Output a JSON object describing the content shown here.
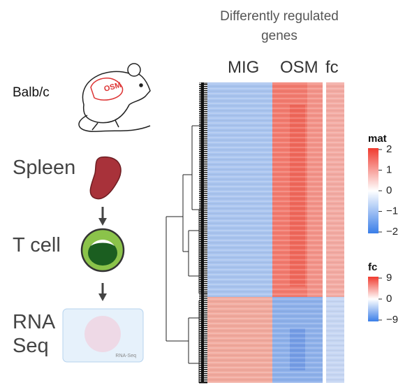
{
  "steps": [
    "Balb/c",
    "Spleen",
    "T cell",
    "RNA Seq"
  ],
  "mouse_tag": "OSM",
  "rna_icon_label": "RNA-Seq",
  "heatmap": {
    "title": "Differently regulated genes",
    "columns": [
      "MIG",
      "OSM",
      "fc"
    ]
  },
  "legends": [
    {
      "title": "mat",
      "ticks": [
        2,
        1,
        0,
        {
          "value": -1,
          "label": "−1"
        },
        {
          "value": -2,
          "label": "−2"
        }
      ]
    },
    {
      "title": "fc",
      "ticks": [
        9,
        0,
        {
          "value": -9,
          "label": "−9"
        }
      ]
    }
  ]
}
